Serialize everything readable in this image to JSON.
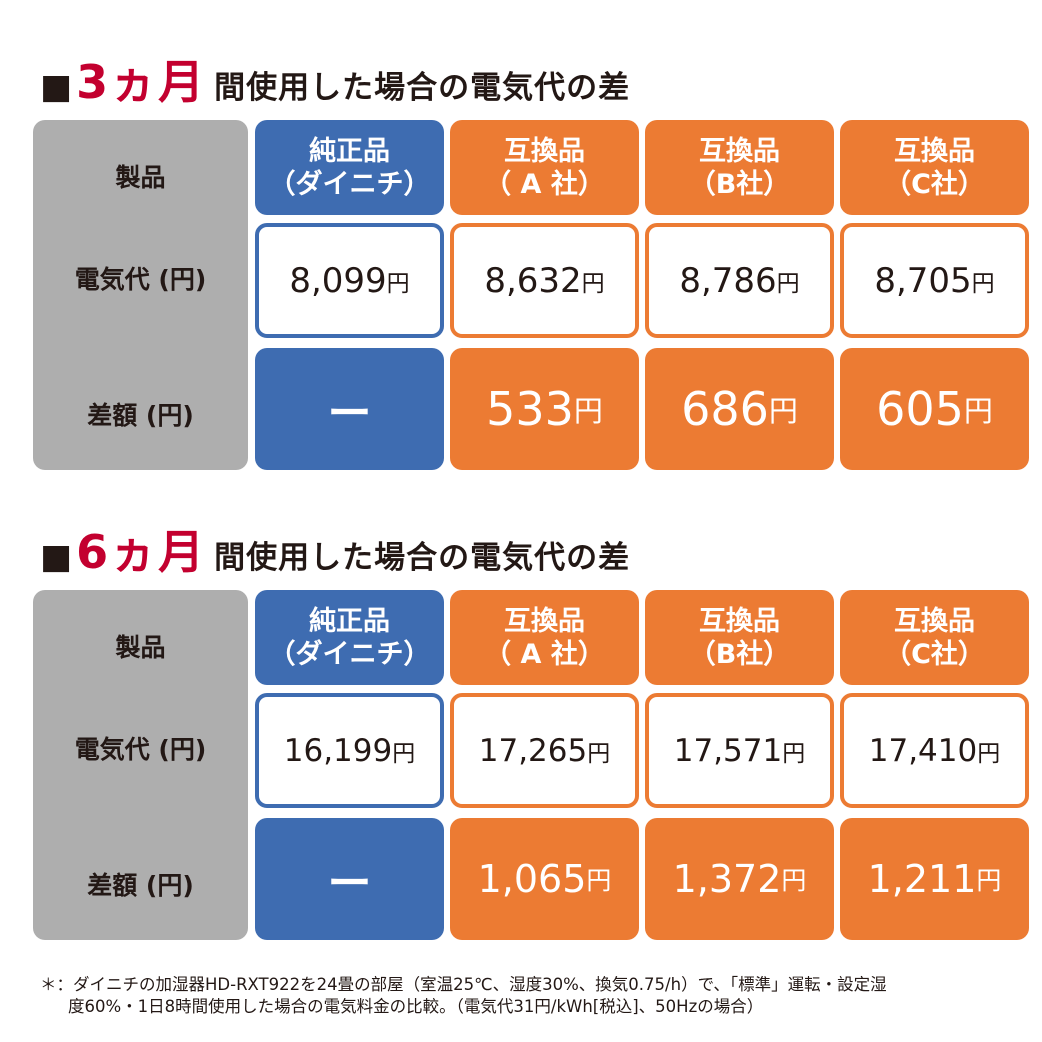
{
  "sections": [
    {
      "heading": {
        "marker": "■",
        "period": "3ヵ月",
        "rest": "間使用した場合の電気代の差"
      },
      "row_labels": {
        "product": "製品",
        "cost": "電気代 (円)",
        "diff": "差額 (円)"
      },
      "columns": [
        {
          "line1": "純正品",
          "line2": "（ダイニチ）",
          "cost": "8,099",
          "diff": "ー"
        },
        {
          "line1": "互換品",
          "line2": "（ A 社）",
          "cost": "8,632",
          "diff": "533"
        },
        {
          "line1": "互換品",
          "line2": "（B社）",
          "cost": "8,786",
          "diff": "686"
        },
        {
          "line1": "互換品",
          "line2": "（C社）",
          "cost": "8,705",
          "diff": "605"
        }
      ],
      "unit": "円"
    },
    {
      "heading": {
        "marker": "■",
        "period": "6ヵ月",
        "rest": "間使用した場合の電気代の差"
      },
      "row_labels": {
        "product": "製品",
        "cost": "電気代 (円)",
        "diff": "差額 (円)"
      },
      "columns": [
        {
          "line1": "純正品",
          "line2": "（ダイニチ）",
          "cost": "16,199",
          "diff": "ー"
        },
        {
          "line1": "互換品",
          "line2": "（ A 社）",
          "cost": "17,265",
          "diff": "1,065"
        },
        {
          "line1": "互換品",
          "line2": "（B社）",
          "cost": "17,571",
          "diff": "1,372"
        },
        {
          "line1": "互換品",
          "line2": "（C社）",
          "cost": "17,410",
          "diff": "1,211"
        }
      ],
      "unit": "円"
    }
  ],
  "footnote": {
    "line1": "＊：ダイニチの加湿器HD-RXT922を24畳の部屋（室温25℃、湿度30%、換気0.75/h）で、「標準」運転・設定湿",
    "line2": "度60%・1日8時間使用した場合の電気料金の比較。（電気代31円/kWh[税込]、50Hzの場合）"
  },
  "colors": {
    "genuine": "#3e6cb1",
    "compatible": "#ec7b33",
    "label_bg": "#aeaeae",
    "accent_red": "#c3002f"
  }
}
